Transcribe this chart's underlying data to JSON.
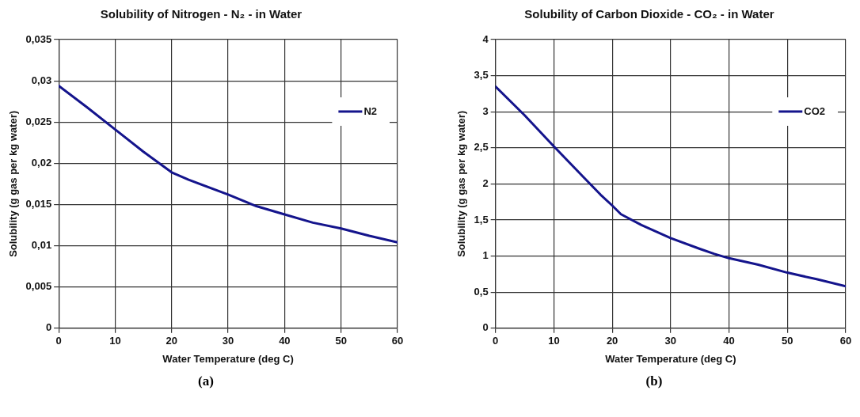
{
  "chart_data": [
    {
      "type": "line",
      "title": "Solubility of Nitrogen - N₂ - in Water",
      "xlabel": "Water Temperature (deg C)",
      "ylabel": "Solubility (g gas per kg water)",
      "annotations": [
        "(a)"
      ],
      "x": [
        0,
        5,
        10,
        15,
        20,
        23,
        30,
        35,
        40,
        45,
        50,
        55,
        60
      ],
      "series": [
        {
          "name": "N2",
          "color": "#14148c",
          "values": [
            0.0294,
            0.0268,
            0.0241,
            0.0214,
            0.0189,
            0.018,
            0.0162,
            0.0148,
            0.0138,
            0.0128,
            0.0121,
            0.0112,
            0.0104
          ]
        }
      ],
      "xlim": [
        0,
        60
      ],
      "xticks": [
        0,
        10,
        20,
        30,
        40,
        50,
        60
      ],
      "ylim": [
        0,
        0.035
      ],
      "yticks": [
        {
          "value": 0,
          "label": "0"
        },
        {
          "value": 0.005,
          "label": "0,005"
        },
        {
          "value": 0.01,
          "label": "0,01"
        },
        {
          "value": 0.015,
          "label": "0,015"
        },
        {
          "value": 0.02,
          "label": "0,02"
        },
        {
          "value": 0.025,
          "label": "0,025"
        },
        {
          "value": 0.03,
          "label": "0,03"
        },
        {
          "value": 0.035,
          "label": "0,035"
        }
      ],
      "grid": true,
      "legend": "top right",
      "marker": "none",
      "line_style": "solid"
    },
    {
      "type": "line",
      "title": "Solubility of Carbon Dioxide - CO₂ - in Water",
      "xlabel": "Water Temperature (deg C)",
      "ylabel": "Solubility (g gas per kg water)",
      "annotations": [
        "(b)"
      ],
      "x": [
        0,
        5,
        10,
        15,
        18,
        20,
        21.5,
        25,
        30,
        35,
        37.5,
        40,
        45,
        50,
        55,
        60
      ],
      "series": [
        {
          "name": "CO2",
          "color": "#14148c",
          "values": [
            3.35,
            2.95,
            2.52,
            2.1,
            1.85,
            1.7,
            1.58,
            1.43,
            1.25,
            1.1,
            1.03,
            0.97,
            0.88,
            0.77,
            0.68,
            0.58
          ]
        }
      ],
      "xlim": [
        0,
        60
      ],
      "xticks": [
        0,
        10,
        20,
        30,
        40,
        50,
        60
      ],
      "ylim": [
        0,
        4
      ],
      "yticks": [
        {
          "value": 0,
          "label": "0"
        },
        {
          "value": 0.5,
          "label": "0,5"
        },
        {
          "value": 1,
          "label": "1"
        },
        {
          "value": 1.5,
          "label": "1,5"
        },
        {
          "value": 2,
          "label": "2"
        },
        {
          "value": 2.5,
          "label": "2,5"
        },
        {
          "value": 3,
          "label": "3"
        },
        {
          "value": 3.5,
          "label": "3,5"
        },
        {
          "value": 4,
          "label": "4"
        }
      ],
      "grid": true,
      "legend": "top right",
      "marker": "none",
      "line_style": "solid"
    }
  ]
}
